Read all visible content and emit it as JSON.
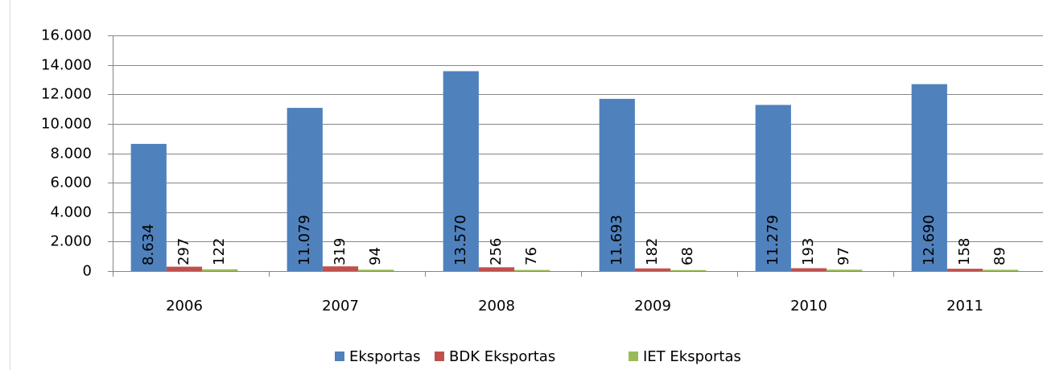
{
  "chart_data": {
    "type": "bar",
    "categories": [
      "2006",
      "2007",
      "2008",
      "2009",
      "2010",
      "2011"
    ],
    "series": [
      {
        "name": "Eksportas",
        "color": "#4f81bd",
        "values": [
          8634,
          11079,
          13570,
          11693,
          11279,
          12690
        ],
        "value_labels": [
          "8.634",
          "11.079",
          "13.570",
          "11.693",
          "11.279",
          "12.690"
        ]
      },
      {
        "name": "BDK Eksportas",
        "color": "#c0504d",
        "values": [
          297,
          319,
          256,
          182,
          193,
          158
        ]
      },
      {
        "name": "IET Eksportas",
        "color": "#9bbb59",
        "values": [
          122,
          94,
          76,
          68,
          97,
          89
        ]
      }
    ],
    "ylim": [
      0,
      16000
    ],
    "yticks": [
      0,
      {
        "value": 2000,
        "label": "2.000"
      },
      {
        "value": 4000,
        "label": "4.000"
      },
      {
        "value": 6000,
        "label": "6.000"
      },
      {
        "value": 8000,
        "label": "8.000"
      },
      {
        "value": 10000,
        "label": "10.000"
      },
      {
        "value": 12000,
        "label": "12.000"
      },
      {
        "value": 14000,
        "label": "14.000"
      },
      {
        "value": 16000,
        "label": "16.000"
      }
    ],
    "grid": true,
    "legend": "bottom"
  }
}
